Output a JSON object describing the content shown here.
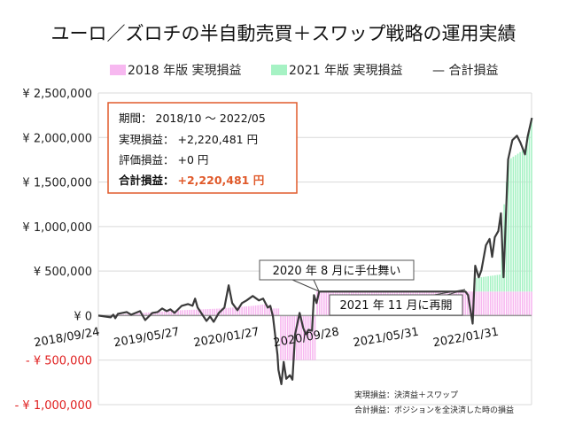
{
  "chart_data": {
    "type": "bar+line",
    "title": "ユーロ／ズロチの半自動売買＋スワップ戦略の運用実績",
    "legend": {
      "placement": "top",
      "entries": [
        "2018 年版 実現損益",
        "2021 年版 実現損益",
        "— 合計損益"
      ]
    },
    "colors": {
      "pink": "#f7b8f0",
      "green": "#a6f2c4",
      "line": "#3a3a3a",
      "box_border": "#e05a2b",
      "accent_red": "#e05a2b",
      "neg_label": "#e02020",
      "grid": "#d9d9d9"
    },
    "ylim": [
      -1000000,
      2500000
    ],
    "yticks": [
      {
        "value": 2500000,
        "label": "¥ 2,500,000"
      },
      {
        "value": 2000000,
        "label": "¥ 2,000,000"
      },
      {
        "value": 1500000,
        "label": "¥ 1,500,000"
      },
      {
        "value": 1000000,
        "label": "¥ 1,000,000"
      },
      {
        "value": 500000,
        "label": "¥ 500,000"
      },
      {
        "value": 0,
        "label": "¥ 0"
      },
      {
        "value": -500000,
        "label": "- ¥ 500,000"
      },
      {
        "value": -1000000,
        "label": "- ¥ 1,000,000"
      }
    ],
    "xlim": [
      "2018-09-24",
      "2022-05-16"
    ],
    "xticks": [
      "2018/09/24",
      "2019/05/27",
      "2020/01/27",
      "2020/09/28",
      "2021/05/31",
      "2022/01/31"
    ],
    "grid": true,
    "series": [
      {
        "name": "2018 年版 実現損益",
        "type": "bar",
        "stack": true,
        "points": [
          [
            "2018-09-24",
            0
          ],
          [
            "2018-12-31",
            20000
          ],
          [
            "2019-06-03",
            60000
          ],
          [
            "2019-10-07",
            80000
          ],
          [
            "2020-01-13",
            110000
          ],
          [
            "2020-02-24",
            130000
          ],
          [
            "2020-03-09",
            80000
          ],
          [
            "2020-03-30",
            80000
          ],
          [
            "2020-04-06",
            -500000
          ],
          [
            "2020-07-20",
            -500000
          ],
          [
            "2020-07-27",
            270000
          ],
          [
            "2022-05-16",
            270000
          ]
        ]
      },
      {
        "name": "2021 年版 実現損益",
        "type": "bar",
        "stack": true,
        "points": [
          [
            "2021-11-15",
            0
          ],
          [
            "2021-11-22",
            150000
          ],
          [
            "2022-02-07",
            190000
          ],
          [
            "2022-02-14",
            700000
          ],
          [
            "2022-02-21",
            980000
          ],
          [
            "2022-03-07",
            1480000
          ],
          [
            "2022-04-25",
            1600000
          ],
          [
            "2022-05-16",
            1950000
          ]
        ]
      },
      {
        "name": "合計損益",
        "type": "line",
        "points": [
          [
            "2018-09-24",
            0
          ],
          [
            "2018-11-01",
            -20000
          ],
          [
            "2018-11-09",
            10000
          ],
          [
            "2018-11-15",
            -30000
          ],
          [
            "2018-11-23",
            20000
          ],
          [
            "2018-12-20",
            40000
          ],
          [
            "2019-01-03",
            10000
          ],
          [
            "2019-01-30",
            50000
          ],
          [
            "2019-02-15",
            -50000
          ],
          [
            "2019-03-09",
            30000
          ],
          [
            "2019-03-25",
            40000
          ],
          [
            "2019-04-08",
            80000
          ],
          [
            "2019-04-22",
            50000
          ],
          [
            "2019-05-03",
            70000
          ],
          [
            "2019-05-16",
            30000
          ],
          [
            "2019-06-07",
            110000
          ],
          [
            "2019-06-26",
            130000
          ],
          [
            "2019-07-10",
            110000
          ],
          [
            "2019-07-18",
            190000
          ],
          [
            "2019-07-26",
            90000
          ],
          [
            "2019-08-22",
            -60000
          ],
          [
            "2019-09-02",
            -10000
          ],
          [
            "2019-09-13",
            -70000
          ],
          [
            "2019-09-29",
            30000
          ],
          [
            "2019-10-16",
            90000
          ],
          [
            "2019-10-29",
            340000
          ],
          [
            "2019-11-09",
            140000
          ],
          [
            "2019-11-25",
            60000
          ],
          [
            "2019-12-09",
            140000
          ],
          [
            "2019-12-23",
            170000
          ],
          [
            "2020-01-11",
            220000
          ],
          [
            "2020-01-30",
            170000
          ],
          [
            "2020-02-12",
            190000
          ],
          [
            "2020-02-26",
            90000
          ],
          [
            "2020-03-05",
            110000
          ],
          [
            "2020-03-13",
            -10000
          ],
          [
            "2020-03-27",
            -440000
          ],
          [
            "2020-03-30",
            -610000
          ],
          [
            "2020-04-08",
            -770000
          ],
          [
            "2020-04-15",
            -520000
          ],
          [
            "2020-04-23",
            -710000
          ],
          [
            "2020-05-04",
            -670000
          ],
          [
            "2020-05-12",
            -720000
          ],
          [
            "2020-05-20",
            -210000
          ],
          [
            "2020-06-03",
            30000
          ],
          [
            "2020-06-14",
            -140000
          ],
          [
            "2020-06-22",
            -210000
          ],
          [
            "2020-06-30",
            -160000
          ],
          [
            "2020-07-11",
            -170000
          ],
          [
            "2020-07-17",
            230000
          ],
          [
            "2020-07-25",
            140000
          ],
          [
            "2020-08-02",
            270000
          ],
          [
            "2021-10-25",
            270000
          ],
          [
            "2021-11-02",
            230000
          ],
          [
            "2021-11-16",
            -90000
          ],
          [
            "2021-11-24",
            560000
          ],
          [
            "2021-12-05",
            430000
          ],
          [
            "2021-12-13",
            510000
          ],
          [
            "2021-12-27",
            790000
          ],
          [
            "2022-01-07",
            860000
          ],
          [
            "2022-01-15",
            660000
          ],
          [
            "2022-01-23",
            880000
          ],
          [
            "2022-02-03",
            950000
          ],
          [
            "2022-02-11",
            1150000
          ],
          [
            "2022-02-19",
            430000
          ],
          [
            "2022-03-05",
            1750000
          ],
          [
            "2022-03-18",
            1970000
          ],
          [
            "2022-04-01",
            2020000
          ],
          [
            "2022-04-12",
            1940000
          ],
          [
            "2022-04-26",
            1810000
          ],
          [
            "2022-05-04",
            2010000
          ],
          [
            "2022-05-17",
            2220481
          ]
        ]
      }
    ],
    "annotations": [
      {
        "text": "2020 年 8 月に手仕舞い",
        "date": "2020-08-02",
        "value": 270000
      },
      {
        "text": "2021 年 11 月に再開",
        "date": "2021-10-25",
        "value": 270000
      }
    ]
  },
  "summary": {
    "period_label": "期間：",
    "period_value": "2018/10 ～ 2022/05",
    "realized_label": "実現損益：",
    "realized_value": "+2,220,481 円",
    "unrealized_label": "評価損益：",
    "unrealized_value": "+0 円",
    "total_label": "合計損益：",
    "total_value": "+2,220,481 円"
  },
  "footnotes": [
    "実現損益：決済益＋スワップ",
    "合計損益：ポジションを全決済した時の損益"
  ]
}
